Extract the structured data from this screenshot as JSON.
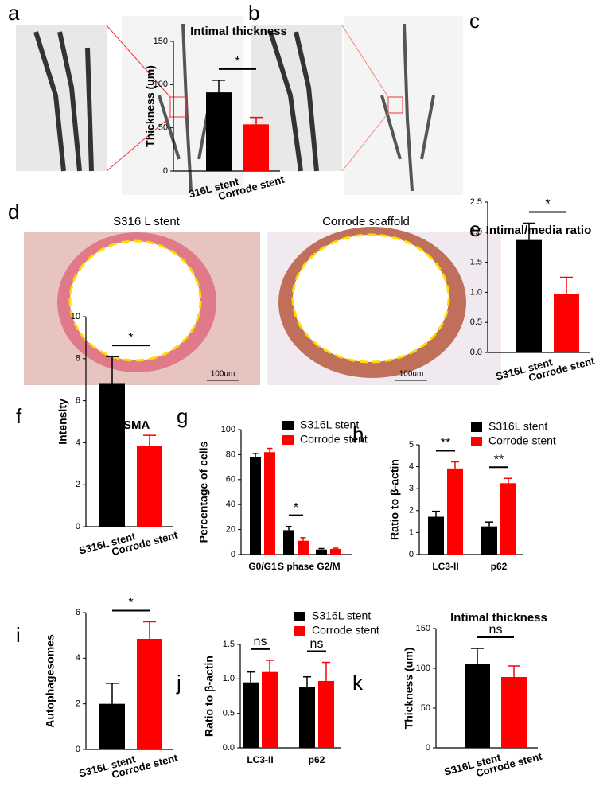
{
  "panels": {
    "labels": [
      "a",
      "b",
      "c",
      "d",
      "e",
      "f",
      "g",
      "h",
      "i",
      "j",
      "k"
    ],
    "captions": [
      "S316 L stent",
      "Corrode scaffold"
    ],
    "scale_bars": [
      "100um",
      "100um"
    ]
  },
  "chart_data": [
    {
      "type": "bar",
      "title": "Intimal thickness",
      "ylabel": "Thickness (um)",
      "categories": [
        "316L stent",
        "Corrode stent"
      ],
      "values": [
        91,
        54
      ],
      "errors": [
        14,
        8
      ],
      "colors": [
        "#000000",
        "#ff0000"
      ],
      "ylim": [
        0,
        150
      ],
      "yticks": [
        0,
        50,
        100,
        150
      ],
      "annotations": [
        "*"
      ]
    },
    {
      "type": "bar",
      "title": "Intimal/media ratio",
      "categories": [
        "S316L stent",
        "Corrode stent"
      ],
      "values": [
        1.87,
        0.97
      ],
      "errors": [
        0.28,
        0.28
      ],
      "colors": [
        "#000000",
        "#ff0000"
      ],
      "ylim": [
        0,
        2.5
      ],
      "yticks": [
        {
          "value": 0,
          "label": "0.0"
        },
        0.5,
        {
          "value": 1,
          "label": "1.0"
        },
        1.5,
        {
          "value": 2,
          "label": "2.0"
        },
        2.5
      ],
      "annotations": [
        "*"
      ]
    },
    {
      "type": "bar",
      "title": "a-SMA",
      "ylabel": "Intensity",
      "categories": [
        "S316L stent",
        "Corrode stent"
      ],
      "values": [
        6.8,
        3.85
      ],
      "errors": [
        1.3,
        0.5
      ],
      "colors": [
        "#000000",
        "#ff0000"
      ],
      "ylim": [
        0,
        10
      ],
      "yticks": [
        0,
        2,
        4,
        6,
        8,
        10
      ],
      "annotations": [
        "*"
      ]
    },
    {
      "type": "grouped-bar",
      "ylabel": "Percentage of cells",
      "categories": [
        "G0/G1",
        "S phase",
        "G2/M"
      ],
      "series": [
        {
          "name": "S316L stent",
          "color": "#000000",
          "values": [
            78,
            19.5,
            4
          ],
          "errors": [
            3,
            3,
            0.8
          ]
        },
        {
          "name": "Corrode stent",
          "color": "#ff0000",
          "values": [
            82,
            11,
            4.5
          ],
          "errors": [
            3,
            2.5,
            0.6
          ]
        }
      ],
      "ylim": [
        0,
        100
      ],
      "yticks": [
        0,
        20,
        40,
        60,
        80,
        100
      ],
      "annotations": [
        null,
        "*",
        null
      ]
    },
    {
      "type": "grouped-bar",
      "ylabel": "Ratio to β-actin",
      "categories": [
        "LC3-II",
        "p62"
      ],
      "series": [
        {
          "name": "S316L stent",
          "color": "#000000",
          "values": [
            1.72,
            1.28
          ],
          "errors": [
            0.25,
            0.2
          ]
        },
        {
          "name": "Corrode stent",
          "color": "#ff0000",
          "values": [
            3.92,
            3.25
          ],
          "errors": [
            0.3,
            0.22
          ]
        }
      ],
      "ylim": [
        0,
        5
      ],
      "yticks": [
        0,
        1,
        2,
        3,
        4,
        5
      ],
      "annotations": [
        "**",
        "**"
      ]
    },
    {
      "type": "bar",
      "ylabel": "Autophagesomes",
      "categories": [
        "S316L stent",
        "Corrode stent"
      ],
      "values": [
        2.0,
        4.85
      ],
      "errors": [
        0.9,
        0.75
      ],
      "colors": [
        "#000000",
        "#ff0000"
      ],
      "ylim": [
        0,
        6
      ],
      "yticks": [
        0,
        2,
        4,
        6
      ],
      "annotations": [
        "*"
      ]
    },
    {
      "type": "grouped-bar",
      "ylabel": "Ratio to β-actin",
      "categories": [
        "LC3-II",
        "p62"
      ],
      "series": [
        {
          "name": "S316L stent",
          "color": "#000000",
          "values": [
            0.95,
            0.88
          ],
          "errors": [
            0.15,
            0.15
          ]
        },
        {
          "name": "Corrode stent",
          "color": "#ff0000",
          "values": [
            1.1,
            0.97
          ],
          "errors": [
            0.17,
            0.27
          ]
        }
      ],
      "ylim": [
        0,
        1.5
      ],
      "yticks": [
        {
          "value": 0,
          "label": "0.0"
        },
        0.5,
        {
          "value": 1,
          "label": "1.0"
        },
        1.5
      ],
      "annotations": [
        "ns",
        "ns"
      ]
    },
    {
      "type": "bar",
      "title": "Intimal thickness",
      "ylabel": "Thickness (um)",
      "categories": [
        "S316L stent",
        "Corrode stent"
      ],
      "values": [
        105,
        89
      ],
      "errors": [
        20,
        14
      ],
      "colors": [
        "#000000",
        "#ff0000"
      ],
      "ylim": [
        0,
        150
      ],
      "yticks": [
        0,
        50,
        100,
        150
      ],
      "annotations": [
        "ns"
      ]
    }
  ]
}
